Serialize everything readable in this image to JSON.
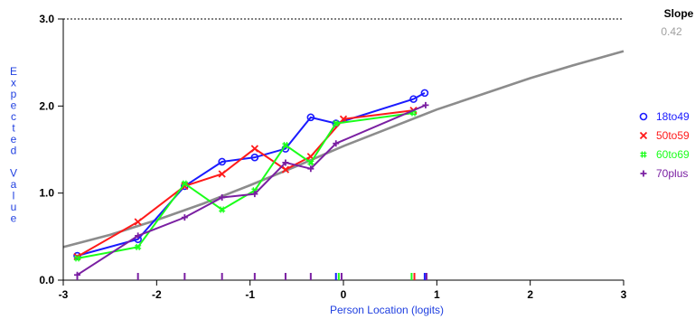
{
  "chart_data": {
    "type": "line",
    "xlabel": "Person Location (logits)",
    "ylabel": "Expected Value",
    "xlim": [
      -3,
      3
    ],
    "ylim": [
      0,
      3
    ],
    "x_ticks": [
      "-3",
      "-2",
      "-1",
      "0",
      "1",
      "2",
      "3"
    ],
    "y_ticks": [
      "0.0",
      "1.0",
      "2.0",
      "3.0"
    ],
    "max_score_line": 3.0,
    "slope": {
      "label": "Slope",
      "value": "0.42"
    },
    "grid": false,
    "legend_position": "right",
    "icc_curve": {
      "color": "#8c8c8c",
      "x": [
        -3,
        -2.5,
        -2,
        -1.5,
        -1,
        -0.5,
        0,
        0.5,
        1,
        1.5,
        2,
        2.5,
        3
      ],
      "y": [
        0.38,
        0.52,
        0.69,
        0.88,
        1.09,
        1.31,
        1.54,
        1.75,
        1.96,
        2.14,
        2.32,
        2.48,
        2.63
      ]
    },
    "series": [
      {
        "name": "18to49",
        "marker": "o",
        "color": "#1a1aff",
        "x": [
          -2.85,
          -2.2,
          -1.7,
          -1.3,
          -0.95,
          -0.62,
          -0.35,
          -0.08,
          0.75,
          0.87
        ],
        "y": [
          0.28,
          0.47,
          1.08,
          1.36,
          1.41,
          1.51,
          1.87,
          1.8,
          2.08,
          2.15
        ]
      },
      {
        "name": "50to59",
        "marker": "×",
        "color": "#ff1a1a",
        "x": [
          -2.85,
          -2.2,
          -1.7,
          -1.3,
          -0.95,
          -0.62,
          -0.35,
          0.0,
          0.75
        ],
        "y": [
          0.27,
          0.67,
          1.08,
          1.22,
          1.51,
          1.27,
          1.42,
          1.85,
          1.95
        ]
      },
      {
        "name": "60to69",
        "marker": "#",
        "color": "#1aff1a",
        "x": [
          -2.85,
          -2.2,
          -1.7,
          -1.3,
          -0.95,
          -0.62,
          -0.35,
          -0.08,
          0.75
        ],
        "y": [
          0.25,
          0.38,
          1.11,
          0.81,
          1.03,
          1.55,
          1.35,
          1.8,
          1.92
        ]
      },
      {
        "name": "70plus",
        "marker": "+",
        "color": "#7a1fa2",
        "x": [
          -2.85,
          -2.2,
          -1.7,
          -1.3,
          -0.95,
          -0.62,
          -0.35,
          -0.08,
          0.88
        ],
        "y": [
          0.06,
          0.51,
          0.72,
          0.95,
          0.99,
          1.35,
          1.28,
          1.57,
          2.01
        ]
      }
    ],
    "rug_marks": [
      {
        "x": -2.85,
        "color": "#7a1fa2"
      },
      {
        "x": -2.2,
        "color": "#7a1fa2"
      },
      {
        "x": -1.7,
        "color": "#7a1fa2"
      },
      {
        "x": -1.3,
        "color": "#7a1fa2"
      },
      {
        "x": -0.95,
        "color": "#7a1fa2"
      },
      {
        "x": -0.62,
        "color": "#7a1fa2"
      },
      {
        "x": -0.35,
        "color": "#7a1fa2"
      },
      {
        "x": -0.08,
        "color": "#1a1aff"
      },
      {
        "x": -0.05,
        "color": "#1aff1a"
      },
      {
        "x": -0.02,
        "color": "#7a1fa2"
      },
      {
        "x": 0.73,
        "color": "#1aff1a"
      },
      {
        "x": 0.76,
        "color": "#ff1a1a"
      },
      {
        "x": 0.87,
        "color": "#1a1aff"
      },
      {
        "x": 0.89,
        "color": "#7a1fa2"
      }
    ]
  }
}
